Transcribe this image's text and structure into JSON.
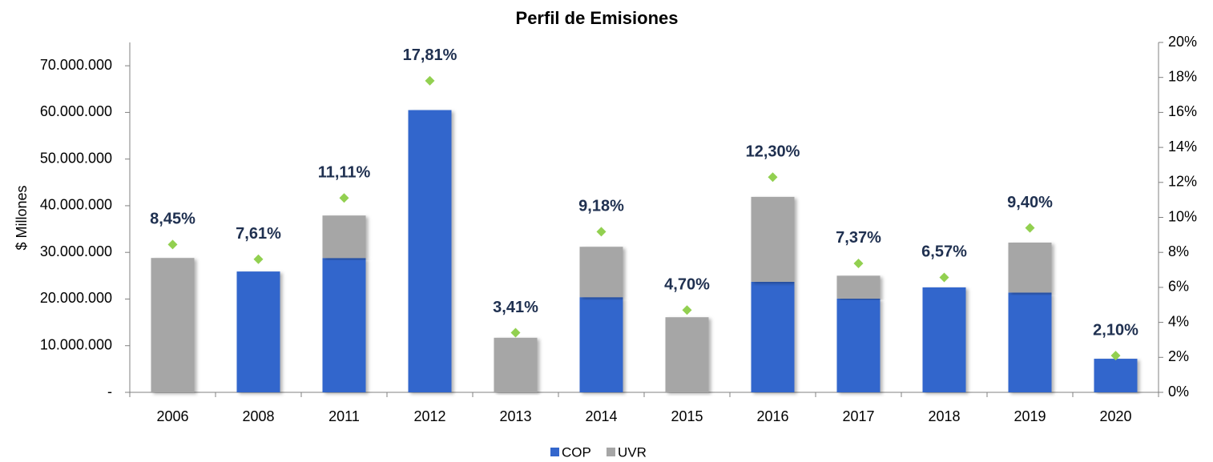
{
  "chart_data": {
    "type": "bar",
    "stacked": true,
    "title": "Perfil de Emisiones",
    "y_label": "$ Millones",
    "categories": [
      "2006",
      "2008",
      "2011",
      "2012",
      "2013",
      "2014",
      "2015",
      "2016",
      "2017",
      "2018",
      "2019",
      "2020"
    ],
    "series": [
      {
        "name": "COP",
        "color": "#3366cc",
        "values": [
          0,
          25900000,
          28800000,
          60500000,
          0,
          20400000,
          0,
          23700000,
          20100000,
          22500000,
          21400000,
          7200000
        ]
      },
      {
        "name": "UVR",
        "color": "#a6a6a6",
        "values": [
          28800000,
          0,
          9100000,
          0,
          11700000,
          10800000,
          16100000,
          18200000,
          4900000,
          0,
          10700000,
          0
        ]
      },
      {
        "type": "scatter",
        "axis": "y2",
        "color": "#92d050",
        "values": [
          8.45,
          7.61,
          11.11,
          17.81,
          3.41,
          9.18,
          4.7,
          12.3,
          7.37,
          6.57,
          9.4,
          2.1
        ],
        "value_labels": [
          "8,45%",
          "7,61%",
          "11,11%",
          "17,81%",
          "3,41%",
          "9,18%",
          "4,70%",
          "12,30%",
          "7,37%",
          "6,57%",
          "9,40%",
          "2,10%"
        ]
      }
    ],
    "ylim": [
      0,
      75000000
    ],
    "yticks": [
      {
        "value": 0,
        "label": "-"
      },
      {
        "value": 10000000,
        "label": "10.000.000"
      },
      {
        "value": 20000000,
        "label": "20.000.000"
      },
      {
        "value": 30000000,
        "label": "30.000.000"
      },
      {
        "value": 40000000,
        "label": "40.000.000"
      },
      {
        "value": 50000000,
        "label": "50.000.000"
      },
      {
        "value": 60000000,
        "label": "60.000.000"
      },
      {
        "value": 70000000,
        "label": "70.000.000"
      }
    ],
    "y2lim": [
      0,
      20
    ],
    "y2ticks": [
      {
        "value": 0,
        "label": "0%"
      },
      {
        "value": 2,
        "label": "2%"
      },
      {
        "value": 4,
        "label": "4%"
      },
      {
        "value": 6,
        "label": "6%"
      },
      {
        "value": 8,
        "label": "8%"
      },
      {
        "value": 10,
        "label": "10%"
      },
      {
        "value": 12,
        "label": "12%"
      },
      {
        "value": 14,
        "label": "14%"
      },
      {
        "value": 16,
        "label": "16%"
      },
      {
        "value": 18,
        "label": "18%"
      },
      {
        "value": 20,
        "label": "20%"
      }
    ],
    "grid": false,
    "legend": "bottom"
  }
}
